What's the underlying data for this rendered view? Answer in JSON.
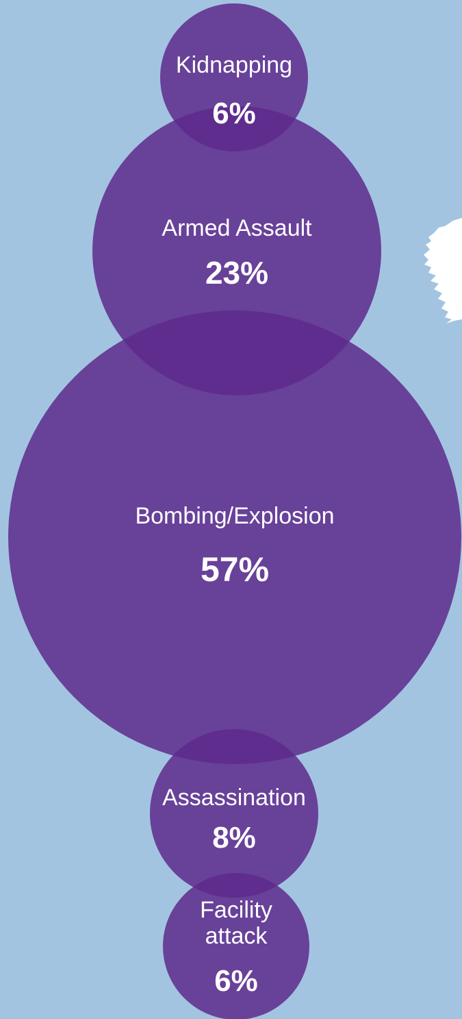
{
  "chart_data": {
    "type": "bubble",
    "colors": {
      "background": "#a3c4e0",
      "bubble": "#5e2a8c",
      "land": "#ffffff"
    },
    "bubbles": [
      {
        "label_lines": [
          "Kidnapping"
        ],
        "value": 6,
        "display": "6%"
      },
      {
        "label_lines": [
          "Armed Assault"
        ],
        "value": 23,
        "display": "23%"
      },
      {
        "label_lines": [
          "Bombing/Explosion"
        ],
        "value": 57,
        "display": "57%"
      },
      {
        "label_lines": [
          "Assassination"
        ],
        "value": 8,
        "display": "8%"
      },
      {
        "label_lines": [
          "Facility",
          "attack"
        ],
        "value": 6,
        "display": "6%"
      }
    ]
  }
}
